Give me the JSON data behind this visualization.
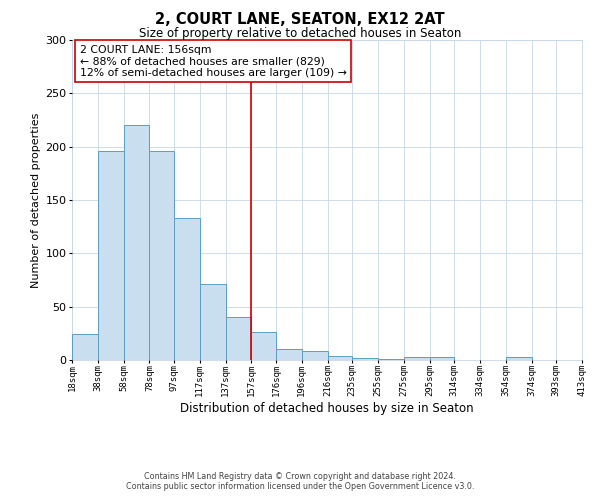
{
  "title": "2, COURT LANE, SEATON, EX12 2AT",
  "subtitle": "Size of property relative to detached houses in Seaton",
  "xlabel": "Distribution of detached houses by size in Seaton",
  "ylabel": "Number of detached properties",
  "bar_left_edges": [
    18,
    38,
    58,
    78,
    97,
    117,
    137,
    157,
    176,
    196,
    216,
    235,
    255,
    275,
    295,
    314,
    334,
    354,
    374,
    393
  ],
  "bar_widths": [
    20,
    20,
    20,
    19,
    20,
    20,
    20,
    19,
    20,
    20,
    19,
    20,
    20,
    20,
    19,
    20,
    20,
    20,
    19,
    20
  ],
  "bar_heights": [
    24,
    196,
    220,
    196,
    133,
    71,
    40,
    26,
    10,
    8,
    4,
    2,
    1,
    3,
    3,
    0,
    0,
    3,
    0,
    0
  ],
  "bar_color": "#c9dff0",
  "bar_edge_color": "#5a9fc5",
  "tick_labels": [
    "18sqm",
    "38sqm",
    "58sqm",
    "78sqm",
    "97sqm",
    "117sqm",
    "137sqm",
    "157sqm",
    "176sqm",
    "196sqm",
    "216sqm",
    "235sqm",
    "255sqm",
    "275sqm",
    "295sqm",
    "314sqm",
    "334sqm",
    "354sqm",
    "374sqm",
    "393sqm",
    "413sqm"
  ],
  "ylim": [
    0,
    300
  ],
  "yticks": [
    0,
    50,
    100,
    150,
    200,
    250,
    300
  ],
  "vline_x": 157,
  "vline_color": "#cc0000",
  "annotation_title": "2 COURT LANE: 156sqm",
  "annotation_line1": "← 88% of detached houses are smaller (829)",
  "annotation_line2": "12% of semi-detached houses are larger (109) →",
  "annotation_box_color": "#ffffff",
  "annotation_box_edge": "#cc0000",
  "footer1": "Contains HM Land Registry data © Crown copyright and database right 2024.",
  "footer2": "Contains public sector information licensed under the Open Government Licence v3.0.",
  "background_color": "#ffffff",
  "grid_color": "#c8d8e8"
}
